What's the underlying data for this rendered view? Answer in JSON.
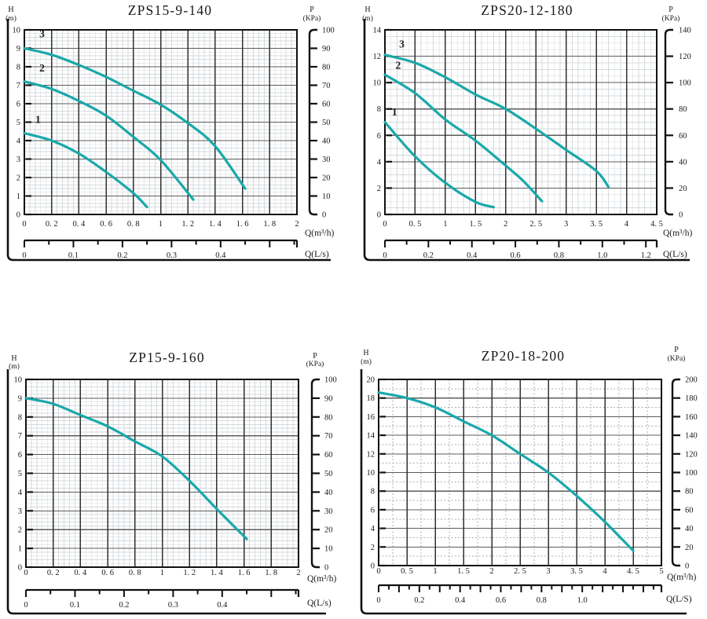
{
  "page": {
    "background": "#ffffff"
  },
  "chart_data": [
    {
      "type": "line",
      "title": "ZPS15-9-140",
      "curve_color": "#1aa8aa",
      "left_axis": {
        "title": "H",
        "unit": "(m)",
        "min": 0,
        "max": 10,
        "step": 1,
        "tick_labels": [
          "0",
          "1",
          "2",
          "3",
          "4",
          "5",
          "6",
          "7",
          "8",
          "9",
          "10"
        ]
      },
      "right_axis": {
        "title": "P",
        "unit": "(KPa)",
        "min": 0,
        "max": 100,
        "step": 10,
        "tick_labels": [
          "0",
          "10",
          "20",
          "30",
          "40",
          "50",
          "60",
          "70",
          "80",
          "90",
          "100"
        ]
      },
      "x_axis": {
        "title": "Q(m³/h)",
        "min": 0,
        "max": 2,
        "step": 0.2,
        "tick_labels": [
          "0",
          "0. 2",
          "0. 4",
          "0. 6",
          "0. 8",
          "1",
          "1. 2",
          "1. 4",
          "1. 6",
          "1. 8",
          "2"
        ]
      },
      "x2_axis": {
        "title": "Q(L/s)",
        "m3h_per_unit": 3.6,
        "minor_step": 0.05,
        "label_values": [
          0,
          0.1,
          0.2,
          0.3,
          0.4
        ],
        "tick_labels": [
          "0",
          "0.1",
          "0.2",
          "0.3",
          "0.4"
        ]
      },
      "grid": {
        "x_minor_div": 5,
        "y_minor_div": 5,
        "minor_style": "mesh"
      },
      "series": [
        {
          "name": "3",
          "label_pos": [
            0.13,
            9.6
          ],
          "points": [
            [
              0,
              9.0
            ],
            [
              0.2,
              8.65
            ],
            [
              0.4,
              8.1
            ],
            [
              0.6,
              7.45
            ],
            [
              0.8,
              6.7
            ],
            [
              1.0,
              5.95
            ],
            [
              1.2,
              4.95
            ],
            [
              1.4,
              3.7
            ],
            [
              1.62,
              1.4
            ]
          ]
        },
        {
          "name": "2",
          "label_pos": [
            0.13,
            7.75
          ],
          "points": [
            [
              0,
              7.2
            ],
            [
              0.2,
              6.8
            ],
            [
              0.4,
              6.15
            ],
            [
              0.6,
              5.35
            ],
            [
              0.8,
              4.2
            ],
            [
              1.0,
              2.95
            ],
            [
              1.24,
              0.8
            ]
          ]
        },
        {
          "name": "1",
          "label_pos": [
            0.1,
            4.95
          ],
          "points": [
            [
              0,
              4.4
            ],
            [
              0.2,
              4.0
            ],
            [
              0.4,
              3.3
            ],
            [
              0.6,
              2.3
            ],
            [
              0.8,
              1.15
            ],
            [
              0.9,
              0.4
            ]
          ]
        }
      ]
    },
    {
      "type": "line",
      "title": "ZPS20-12-180",
      "curve_color": "#1aa8aa",
      "left_axis": {
        "title": "H",
        "unit": "(m)",
        "min": 0,
        "max": 14,
        "step": 2,
        "tick_labels": [
          "0",
          "2",
          "4",
          "6",
          "8",
          "10",
          "12",
          "14"
        ]
      },
      "right_axis": {
        "title": "P",
        "unit": "(KPa)",
        "min": 0,
        "max": 140,
        "step": 20,
        "tick_labels": [
          "0",
          "20",
          "40",
          "60",
          "80",
          "100",
          "120",
          "140"
        ]
      },
      "x_axis": {
        "title": "Q(m³/h)",
        "min": 0,
        "max": 4.5,
        "step": 0.5,
        "tick_labels": [
          "0",
          "0. 5",
          "1",
          "1. 5",
          "2",
          "2. 5",
          "3",
          "3. 5",
          "4",
          "4. 5"
        ]
      },
      "x2_axis": {
        "title": "Q(L/s)",
        "m3h_per_unit": 3.6,
        "minor_step": 0.1,
        "label_values": [
          0,
          0.2,
          0.4,
          0.6,
          0.8,
          1.0,
          1.2
        ],
        "tick_labels": [
          "0",
          "0.2",
          "0.4",
          "0.6",
          "0.8",
          "1.0",
          "1.2"
        ]
      },
      "grid": {
        "x_minor_div": 5,
        "y_minor_div": 4,
        "minor_style": "mesh"
      },
      "series": [
        {
          "name": "3",
          "label_pos": [
            0.28,
            12.65
          ],
          "points": [
            [
              0,
              12.1
            ],
            [
              0.5,
              11.5
            ],
            [
              1.0,
              10.4
            ],
            [
              1.5,
              9.1
            ],
            [
              2.0,
              8.0
            ],
            [
              2.5,
              6.5
            ],
            [
              3.0,
              4.9
            ],
            [
              3.5,
              3.3
            ],
            [
              3.7,
              2.1
            ]
          ]
        },
        {
          "name": "2",
          "label_pos": [
            0.22,
            11.05
          ],
          "points": [
            [
              0,
              10.6
            ],
            [
              0.5,
              9.2
            ],
            [
              1.0,
              7.2
            ],
            [
              1.5,
              5.6
            ],
            [
              2.0,
              3.7
            ],
            [
              2.3,
              2.5
            ],
            [
              2.6,
              1.0
            ]
          ]
        },
        {
          "name": "1",
          "label_pos": [
            0.16,
            7.5
          ],
          "points": [
            [
              0,
              7.0
            ],
            [
              0.5,
              4.4
            ],
            [
              1.0,
              2.4
            ],
            [
              1.5,
              0.95
            ],
            [
              1.8,
              0.55
            ]
          ]
        }
      ]
    },
    {
      "type": "line",
      "title": "ZP15-9-160",
      "curve_color": "#1aa8aa",
      "left_axis": {
        "title": "H",
        "unit": "(m)",
        "min": 0,
        "max": 10,
        "step": 1,
        "tick_labels": [
          "0",
          "1",
          "2",
          "3",
          "4",
          "5",
          "6",
          "7",
          "8",
          "9",
          "10"
        ]
      },
      "right_axis": {
        "title": "P",
        "unit": "(KPa)",
        "min": 0,
        "max": 100,
        "step": 10,
        "tick_labels": [
          "0",
          "10",
          "20",
          "30",
          "40",
          "50",
          "60",
          "70",
          "80",
          "90",
          "100"
        ]
      },
      "x_axis": {
        "title": "Q(m³/h)",
        "min": 0,
        "max": 2,
        "step": 0.2,
        "tick_labels": [
          "0",
          "0. 2",
          "0. 4",
          "0. 6",
          "0. 8",
          "1",
          "1. 2",
          "1. 4",
          "1. 6",
          "1. 8",
          "2"
        ]
      },
      "x2_axis": {
        "title": "Q(L/s)",
        "m3h_per_unit": 3.6,
        "minor_step": 0.05,
        "label_values": [
          0,
          0.1,
          0.2,
          0.3,
          0.4
        ],
        "tick_labels": [
          "0",
          "0.1",
          "0.2",
          "0.3",
          "0.4"
        ]
      },
      "grid": {
        "x_minor_div": 5,
        "y_minor_div": 5,
        "minor_style": "mesh"
      },
      "series": [
        {
          "name": "",
          "label_pos": null,
          "points": [
            [
              0,
              9.0
            ],
            [
              0.2,
              8.7
            ],
            [
              0.4,
              8.1
            ],
            [
              0.6,
              7.5
            ],
            [
              0.8,
              6.7
            ],
            [
              1.0,
              5.9
            ],
            [
              1.2,
              4.6
            ],
            [
              1.4,
              3.1
            ],
            [
              1.62,
              1.5
            ]
          ]
        }
      ]
    },
    {
      "type": "line",
      "title": "ZP20-18-200",
      "curve_color": "#1aa8aa",
      "left_axis": {
        "title": "H",
        "unit": "(m)",
        "min": 0,
        "max": 20,
        "step": 2,
        "tick_labels": [
          "0",
          "2",
          "4",
          "6",
          "8",
          "10",
          "12",
          "14",
          "16",
          "18",
          "20"
        ]
      },
      "right_axis": {
        "title": "P",
        "unit": "(KPa)",
        "min": 0,
        "max": 200,
        "step": 20,
        "tick_labels": [
          "0",
          "20",
          "40",
          "60",
          "80",
          "100",
          "120",
          "140",
          "160",
          "180",
          "200"
        ]
      },
      "x_axis": {
        "title": "Q(m³/h)",
        "min": 0,
        "max": 5,
        "step": 0.5,
        "tick_labels": [
          "0",
          "0. 5",
          "1",
          "1. 5",
          "2",
          "2. 5",
          "3",
          "3. 5",
          "4",
          "4. 5",
          "5"
        ]
      },
      "x2_axis": {
        "title": "Q(L/S)",
        "m3h_per_unit": 3.6,
        "minor_step": 0.05,
        "label_values": [
          0,
          0.2,
          0.4,
          0.6,
          0.8,
          1.0
        ],
        "tick_labels": [
          "0",
          "0.2",
          "0.4",
          "0.6",
          "0.8",
          "1.0"
        ]
      },
      "grid": {
        "x_minor_div": 2,
        "y_minor_div": 2,
        "minor_style": "dotted"
      },
      "series": [
        {
          "name": "",
          "label_pos": null,
          "points": [
            [
              0,
              18.6
            ],
            [
              0.5,
              18.0
            ],
            [
              1.0,
              17.0
            ],
            [
              1.5,
              15.5
            ],
            [
              2.0,
              14.0
            ],
            [
              2.5,
              12.0
            ],
            [
              3.0,
              10.0
            ],
            [
              3.5,
              7.5
            ],
            [
              4.0,
              4.7
            ],
            [
              4.5,
              1.6
            ]
          ]
        }
      ]
    }
  ]
}
